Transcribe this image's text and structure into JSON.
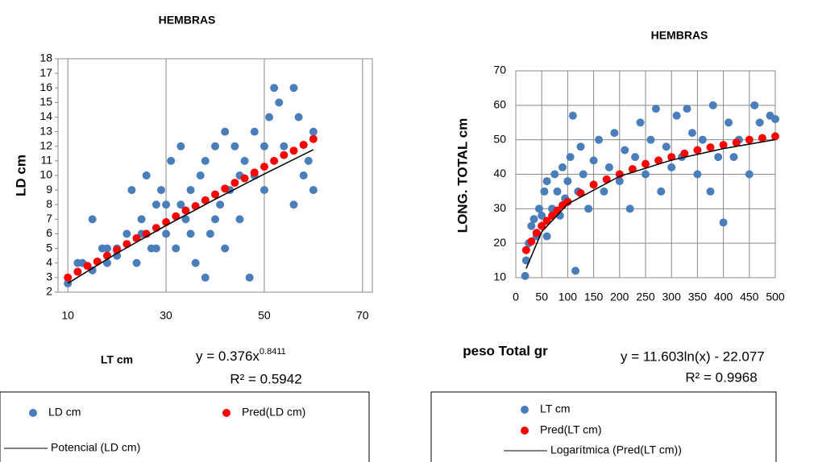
{
  "chart_data": [
    {
      "type": "scatter",
      "title": "HEMBRAS",
      "x_label": "LT cm",
      "y_label": "LD cm",
      "equation": "y = 0.376x",
      "equation_exponent": "0.8411",
      "r_squared": "R² = 0.5942",
      "xlim": [
        8,
        72
      ],
      "ylim": [
        2,
        18
      ],
      "xticks": [
        10,
        30,
        50,
        70
      ],
      "yticks": [
        2,
        3,
        4,
        5,
        6,
        7,
        8,
        9,
        10,
        11,
        12,
        13,
        14,
        15,
        16,
        17,
        18
      ],
      "xgrid": true,
      "ygrid": false,
      "series": [
        {
          "name": "LD cm",
          "color": "#4a7ebb",
          "kind": "marker",
          "x": [
            10,
            12,
            13,
            15,
            15,
            17,
            18,
            18,
            20,
            20,
            22,
            23,
            24,
            25,
            26,
            27,
            28,
            29,
            30,
            30,
            31,
            32,
            33,
            34,
            35,
            36,
            37,
            38,
            38,
            39,
            40,
            41,
            42,
            42,
            43,
            44,
            45,
            46,
            47,
            48,
            48,
            50,
            51,
            52,
            53,
            54,
            56,
            56,
            57,
            58,
            59,
            60,
            60,
            35,
            28,
            45,
            25,
            33,
            40,
            50
          ],
          "values": [
            2.6,
            4,
            4,
            7,
            3.5,
            5,
            4,
            5,
            5,
            4.5,
            6,
            9,
            4,
            7,
            10,
            5,
            8,
            9,
            6,
            8,
            11,
            5,
            12,
            7,
            9,
            4,
            10,
            11,
            3,
            6,
            12,
            8,
            13,
            5,
            9,
            12,
            7,
            11,
            3,
            13,
            10,
            9,
            14,
            16,
            15,
            12,
            16,
            8,
            14,
            10,
            11,
            13,
            9,
            6,
            5,
            10,
            6,
            8,
            7,
            12
          ]
        },
        {
          "name": "Pred(LD cm)",
          "color": "#ff0000",
          "kind": "marker",
          "x": [
            10,
            12,
            14,
            16,
            18,
            20,
            22,
            24,
            26,
            28,
            30,
            32,
            34,
            36,
            38,
            40,
            42,
            44,
            46,
            48,
            50,
            52,
            54,
            56,
            58,
            60
          ],
          "values": [
            3.0,
            3.4,
            3.8,
            4.1,
            4.5,
            4.9,
            5.3,
            5.7,
            6.0,
            6.4,
            6.8,
            7.2,
            7.6,
            7.9,
            8.3,
            8.7,
            9.1,
            9.5,
            9.8,
            10.2,
            10.6,
            11.0,
            11.4,
            11.7,
            12.1,
            12.5
          ]
        },
        {
          "name": "Potencial (LD cm)",
          "color": "#000000",
          "kind": "line",
          "x": [
            10,
            20,
            30,
            40,
            50,
            60
          ],
          "values": [
            2.61,
            4.67,
            6.57,
            8.37,
            10.1,
            11.77
          ]
        }
      ]
    },
    {
      "type": "scatter",
      "title": "HEMBRAS",
      "x_label": "peso Total gr",
      "y_label": "LONG. TOTAL cm",
      "equation": "y = 11.603ln(x) - 22.077",
      "r_squared": "R² = 0.9968",
      "xlim": [
        0,
        500
      ],
      "ylim": [
        10,
        70
      ],
      "xticks": [
        0,
        50,
        100,
        150,
        200,
        250,
        300,
        350,
        400,
        450,
        500
      ],
      "yticks": [
        10,
        20,
        30,
        40,
        50,
        60,
        70
      ],
      "xgrid": true,
      "ygrid": true,
      "series": [
        {
          "name": "LT cm",
          "color": "#4a7ebb",
          "kind": "marker",
          "x": [
            18,
            20,
            25,
            30,
            35,
            40,
            45,
            50,
            55,
            60,
            60,
            70,
            75,
            80,
            85,
            90,
            95,
            100,
            105,
            110,
            115,
            120,
            125,
            130,
            140,
            150,
            160,
            170,
            180,
            190,
            200,
            210,
            220,
            230,
            240,
            250,
            260,
            270,
            280,
            290,
            300,
            310,
            320,
            330,
            340,
            350,
            360,
            375,
            380,
            390,
            400,
            410,
            420,
            430,
            450,
            460,
            470,
            490,
            500
          ],
          "values": [
            10.5,
            15,
            20,
            25,
            27,
            22,
            30,
            28,
            35,
            22,
            38,
            30,
            40,
            35,
            28,
            42,
            33,
            38,
            45,
            57,
            12,
            35,
            48,
            40,
            30,
            44,
            50,
            35,
            42,
            52,
            38,
            47,
            30,
            45,
            55,
            40,
            50,
            59,
            35,
            48,
            42,
            57,
            45,
            59,
            52,
            40,
            50,
            35,
            60,
            45,
            26,
            55,
            45,
            50,
            40,
            60,
            55,
            57,
            56
          ]
        },
        {
          "name": "Pred(LT cm)",
          "color": "#ff0000",
          "kind": "marker",
          "x": [
            20,
            30,
            40,
            50,
            60,
            70,
            80,
            90,
            100,
            125,
            150,
            175,
            200,
            225,
            250,
            275,
            300,
            325,
            350,
            375,
            400,
            425,
            450,
            475,
            500
          ],
          "values": [
            18,
            20.5,
            23,
            25,
            26.5,
            28,
            29.5,
            31,
            32,
            34.5,
            37,
            38.5,
            40,
            41.5,
            43,
            44,
            45,
            46,
            47,
            47.8,
            48.5,
            49.2,
            50,
            50.5,
            51
          ]
        },
        {
          "name": "Logarítmica (Pred(LT cm))",
          "color": "#000000",
          "kind": "line",
          "x": [
            20,
            50,
            100,
            200,
            300,
            400,
            500
          ],
          "values": [
            12.68,
            23.31,
            31.36,
            39.4,
            44.1,
            47.44,
            50.03
          ]
        }
      ]
    }
  ]
}
